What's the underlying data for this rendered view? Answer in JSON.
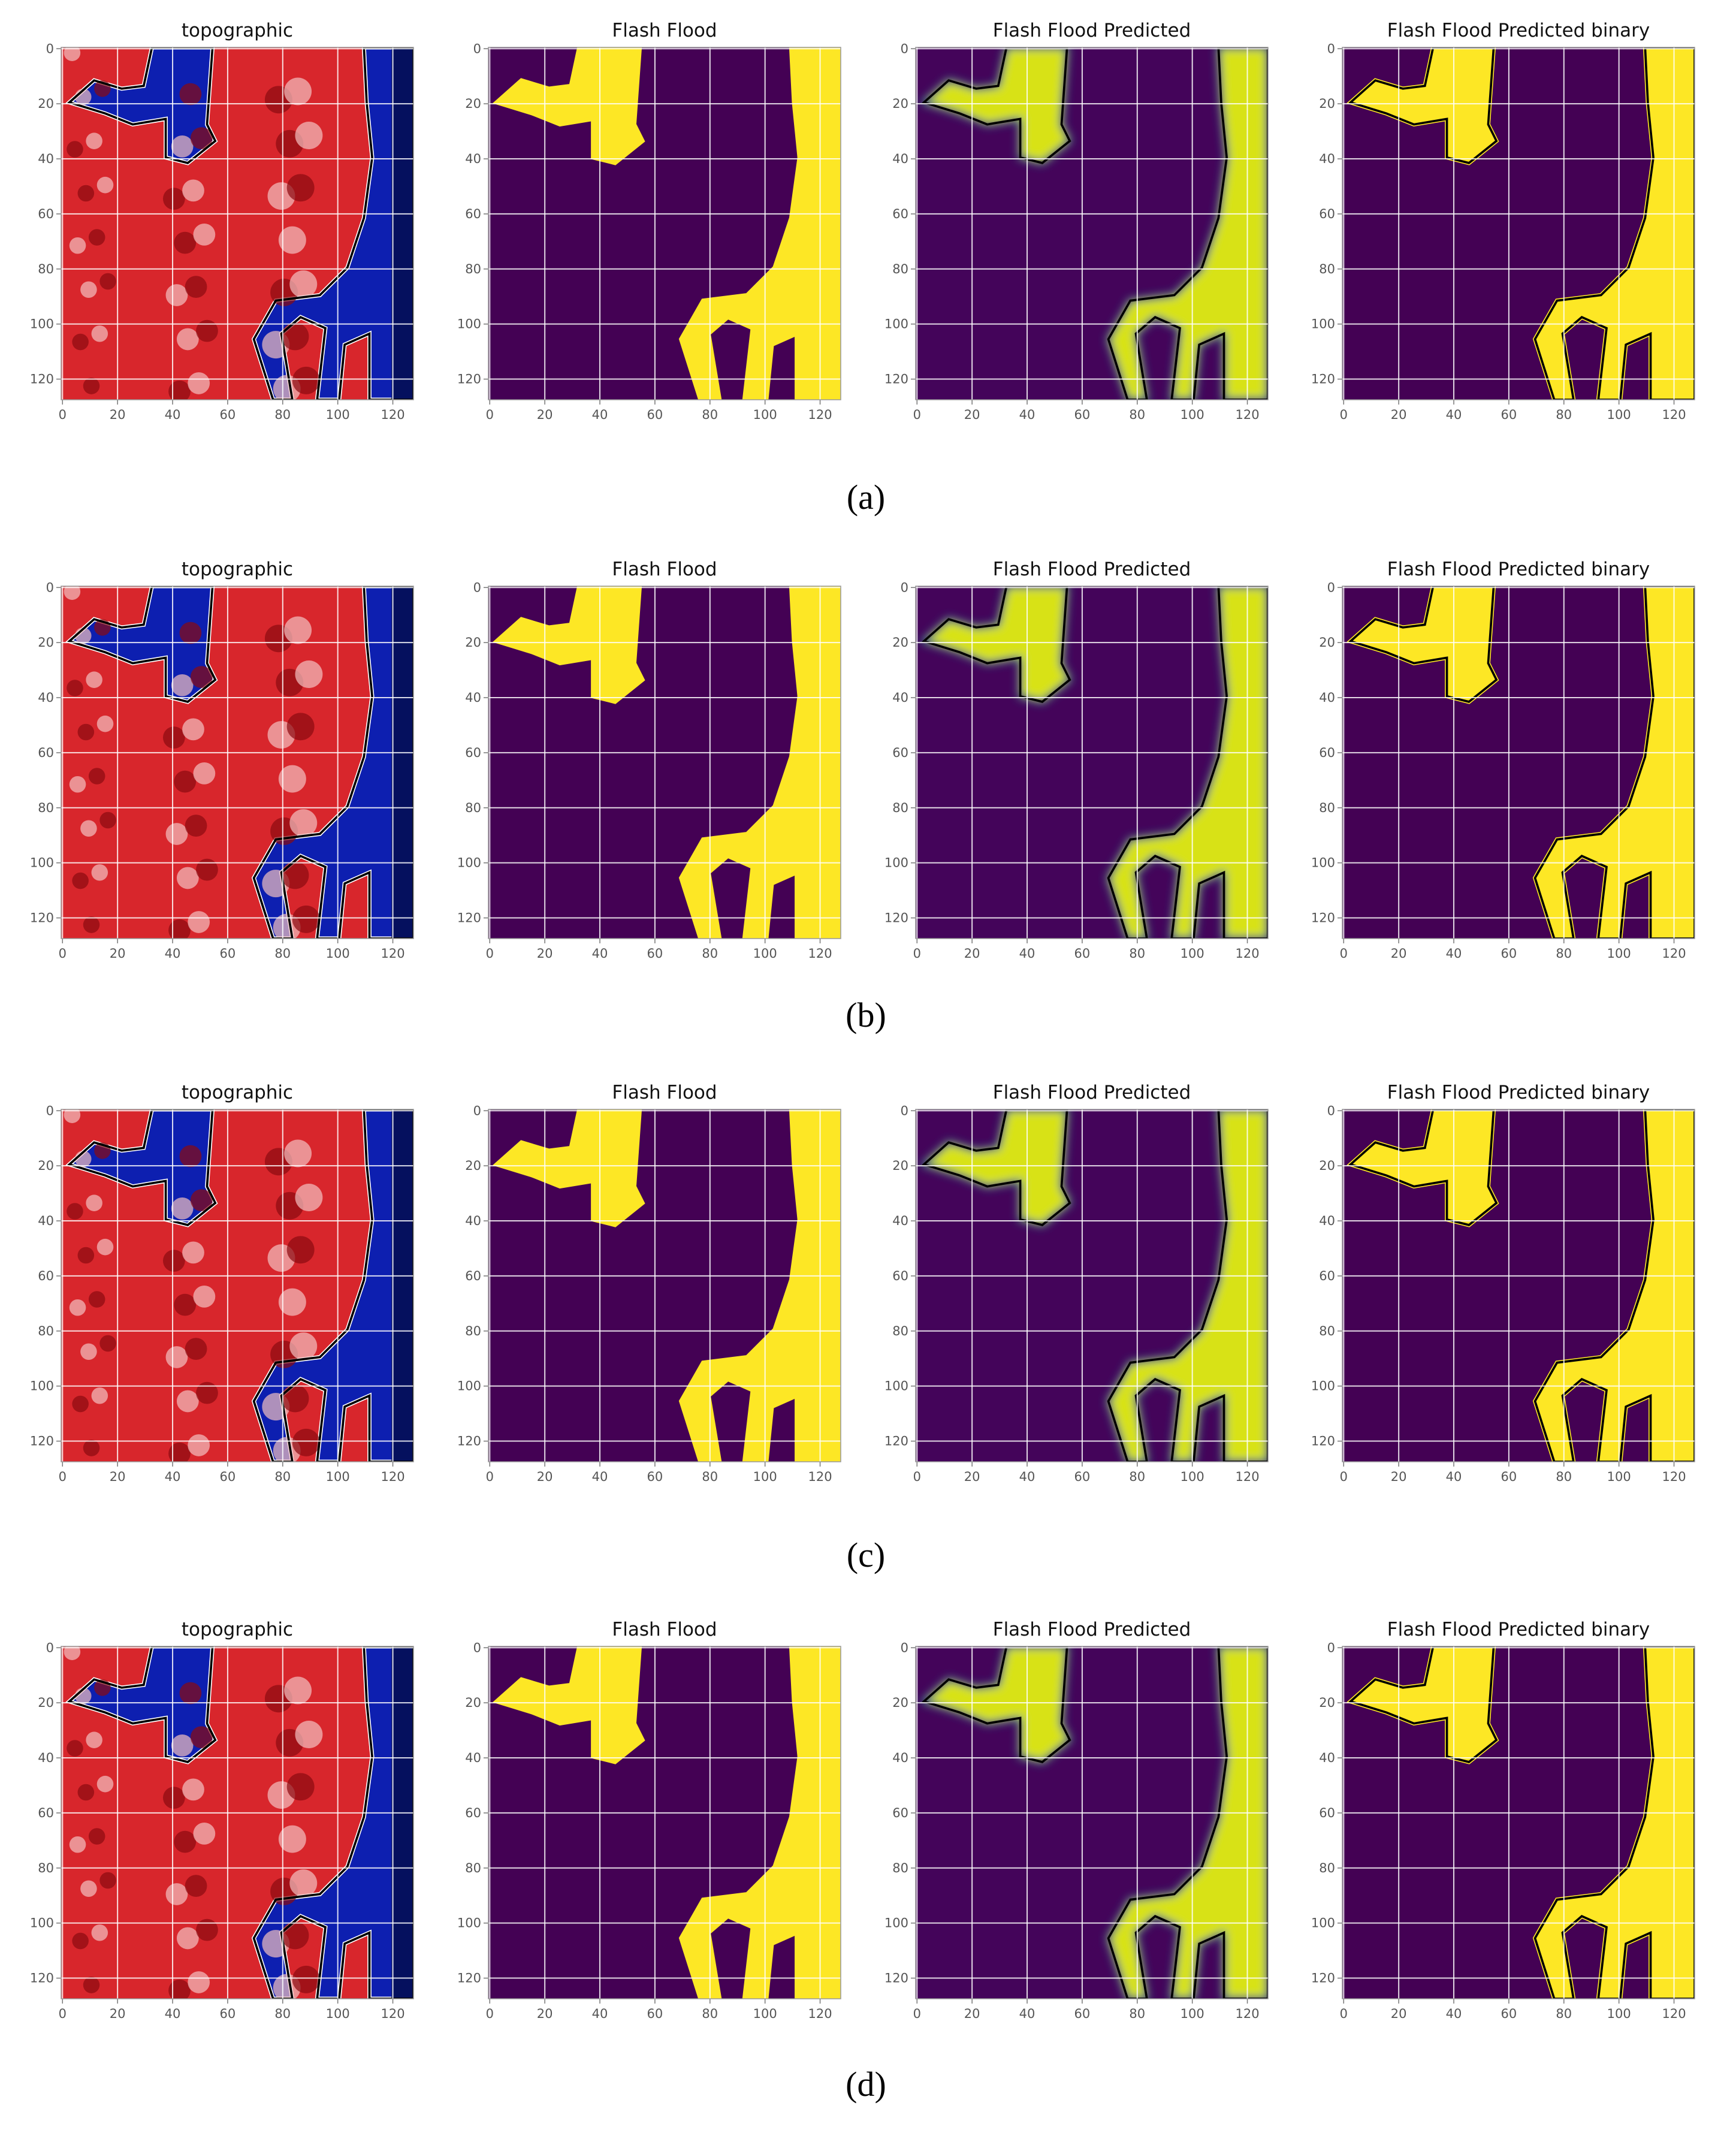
{
  "chart_data": [
    {
      "type": "heatmap",
      "title": "topographic",
      "colormap": "seismic",
      "contour": true,
      "grid": true,
      "xlim": [
        -0.5,
        127.5
      ],
      "ylim": [
        127.5,
        -0.5
      ],
      "xticks": [
        0,
        20,
        40,
        60,
        80,
        100,
        120
      ],
      "yticks": [
        0,
        20,
        40,
        60,
        80,
        100,
        120
      ]
    },
    {
      "type": "heatmap",
      "title": "Flash Flood",
      "colormap": "viridis",
      "contour": false,
      "grid": true,
      "xlim": [
        -0.5,
        127.5
      ],
      "ylim": [
        127.5,
        -0.5
      ],
      "xticks": [
        0,
        20,
        40,
        60,
        80,
        100,
        120
      ],
      "yticks": [
        0,
        20,
        40,
        60,
        80,
        100,
        120
      ]
    },
    {
      "type": "heatmap",
      "title": "Flash Flood Predicted",
      "colormap": "viridis-soft",
      "contour": true,
      "grid": true,
      "xlim": [
        -0.5,
        127.5
      ],
      "ylim": [
        127.5,
        -0.5
      ],
      "xticks": [
        0,
        20,
        40,
        60,
        80,
        100,
        120
      ],
      "yticks": [
        0,
        20,
        40,
        60,
        80,
        100,
        120
      ]
    },
    {
      "type": "heatmap",
      "title": "Flash Flood Predicted binary",
      "colormap": "viridis",
      "contour": true,
      "grid": true,
      "xlim": [
        -0.5,
        127.5
      ],
      "ylim": [
        127.5,
        -0.5
      ],
      "xticks": [
        0,
        20,
        40,
        60,
        80,
        100,
        120
      ],
      "yticks": [
        0,
        20,
        40,
        60,
        80,
        100,
        120
      ]
    },
    {
      "type": "heatmap",
      "title": "topographic",
      "colormap": "seismic",
      "contour": true,
      "grid": true,
      "xlim": [
        -0.5,
        127.5
      ],
      "ylim": [
        127.5,
        -0.5
      ],
      "xticks": [
        0,
        20,
        40,
        60,
        80,
        100,
        120
      ],
      "yticks": [
        0,
        20,
        40,
        60,
        80,
        100,
        120
      ]
    },
    {
      "type": "heatmap",
      "title": "Flash Flood",
      "colormap": "viridis",
      "contour": false,
      "grid": true,
      "xlim": [
        -0.5,
        127.5
      ],
      "ylim": [
        127.5,
        -0.5
      ],
      "xticks": [
        0,
        20,
        40,
        60,
        80,
        100,
        120
      ],
      "yticks": [
        0,
        20,
        40,
        60,
        80,
        100,
        120
      ]
    },
    {
      "type": "heatmap",
      "title": "Flash Flood Predicted",
      "colormap": "viridis-soft",
      "contour": true,
      "grid": true,
      "xlim": [
        -0.5,
        127.5
      ],
      "ylim": [
        127.5,
        -0.5
      ],
      "xticks": [
        0,
        20,
        40,
        60,
        80,
        100,
        120
      ],
      "yticks": [
        0,
        20,
        40,
        60,
        80,
        100,
        120
      ]
    },
    {
      "type": "heatmap",
      "title": "Flash Flood Predicted binary",
      "colormap": "viridis",
      "contour": true,
      "grid": true,
      "xlim": [
        -0.5,
        127.5
      ],
      "ylim": [
        127.5,
        -0.5
      ],
      "xticks": [
        0,
        20,
        40,
        60,
        80,
        100,
        120
      ],
      "yticks": [
        0,
        20,
        40,
        60,
        80,
        100,
        120
      ]
    },
    {
      "type": "heatmap",
      "title": "topographic",
      "colormap": "seismic",
      "contour": true,
      "grid": true,
      "xlim": [
        -0.5,
        127.5
      ],
      "ylim": [
        127.5,
        -0.5
      ],
      "xticks": [
        0,
        20,
        40,
        60,
        80,
        100,
        120
      ],
      "yticks": [
        0,
        20,
        40,
        60,
        80,
        100,
        120
      ]
    },
    {
      "type": "heatmap",
      "title": "Flash Flood",
      "colormap": "viridis",
      "contour": false,
      "grid": true,
      "xlim": [
        -0.5,
        127.5
      ],
      "ylim": [
        127.5,
        -0.5
      ],
      "xticks": [
        0,
        20,
        40,
        60,
        80,
        100,
        120
      ],
      "yticks": [
        0,
        20,
        40,
        60,
        80,
        100,
        120
      ]
    },
    {
      "type": "heatmap",
      "title": "Flash Flood Predicted",
      "colormap": "viridis-soft",
      "contour": true,
      "grid": true,
      "xlim": [
        -0.5,
        127.5
      ],
      "ylim": [
        127.5,
        -0.5
      ],
      "xticks": [
        0,
        20,
        40,
        60,
        80,
        100,
        120
      ],
      "yticks": [
        0,
        20,
        40,
        60,
        80,
        100,
        120
      ]
    },
    {
      "type": "heatmap",
      "title": "Flash Flood Predicted binary",
      "colormap": "viridis",
      "contour": true,
      "grid": true,
      "xlim": [
        -0.5,
        127.5
      ],
      "ylim": [
        127.5,
        -0.5
      ],
      "xticks": [
        0,
        20,
        40,
        60,
        80,
        100,
        120
      ],
      "yticks": [
        0,
        20,
        40,
        60,
        80,
        100,
        120
      ]
    },
    {
      "type": "heatmap",
      "title": "topographic",
      "colormap": "seismic",
      "contour": true,
      "grid": true,
      "xlim": [
        -0.5,
        127.5
      ],
      "ylim": [
        127.5,
        -0.5
      ],
      "xticks": [
        0,
        20,
        40,
        60,
        80,
        100,
        120
      ],
      "yticks": [
        0,
        20,
        40,
        60,
        80,
        100,
        120
      ]
    },
    {
      "type": "heatmap",
      "title": "Flash Flood",
      "colormap": "viridis",
      "contour": false,
      "grid": true,
      "xlim": [
        -0.5,
        127.5
      ],
      "ylim": [
        127.5,
        -0.5
      ],
      "xticks": [
        0,
        20,
        40,
        60,
        80,
        100,
        120
      ],
      "yticks": [
        0,
        20,
        40,
        60,
        80,
        100,
        120
      ]
    },
    {
      "type": "heatmap",
      "title": "Flash Flood Predicted",
      "colormap": "viridis-soft",
      "contour": true,
      "grid": true,
      "xlim": [
        -0.5,
        127.5
      ],
      "ylim": [
        127.5,
        -0.5
      ],
      "xticks": [
        0,
        20,
        40,
        60,
        80,
        100,
        120
      ],
      "yticks": [
        0,
        20,
        40,
        60,
        80,
        100,
        120
      ]
    },
    {
      "type": "heatmap",
      "title": "Flash Flood Predicted binary",
      "colormap": "viridis",
      "contour": true,
      "grid": true,
      "xlim": [
        -0.5,
        127.5
      ],
      "ylim": [
        127.5,
        -0.5
      ],
      "xticks": [
        0,
        20,
        40,
        60,
        80,
        100,
        120
      ],
      "yticks": [
        0,
        20,
        40,
        60,
        80,
        100,
        120
      ]
    }
  ],
  "captions": [
    "(a)",
    "(b)",
    "(c)",
    "(d)"
  ]
}
